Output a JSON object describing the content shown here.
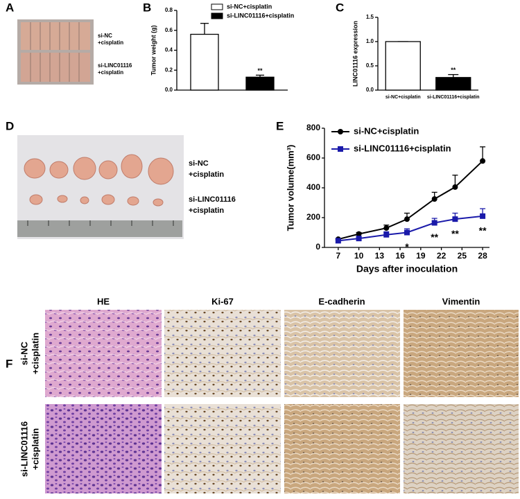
{
  "panel_labels": [
    "A",
    "B",
    "C",
    "D",
    "E",
    "F"
  ],
  "panel_a": {
    "rows": [
      [
        "si-NC",
        "+cisplatin"
      ],
      [
        "si-LINC01116",
        "+cisplatin"
      ]
    ]
  },
  "panel_d": {
    "rows": [
      [
        "si-NC",
        "+cisplatin"
      ],
      [
        "si-LINC01116",
        "+cisplatin"
      ]
    ]
  },
  "panel_f": {
    "columns": [
      "HE",
      "Ki-67",
      "E-cadherin",
      "Vimentin"
    ],
    "rows": [
      [
        "si-NC",
        "+cisplatin"
      ],
      [
        "si-LINC01116",
        "+cisplatin"
      ]
    ]
  },
  "chart_data": [
    {
      "type": "bar",
      "ylabel": "Tumor weight (g)",
      "series": [
        {
          "name": "si-NC+cisplatin",
          "color": "#ffffff",
          "values": [
            0.56
          ],
          "errors": [
            0.11
          ]
        },
        {
          "name": "si-LINC01116+cisplatin",
          "color": "#000000",
          "values": [
            0.13
          ],
          "errors": [
            0.02
          ]
        }
      ],
      "significance": [
        null,
        "**"
      ],
      "ylim": [
        0,
        0.8
      ],
      "yticks": [
        {
          "value": 0,
          "label": "0.0"
        },
        0.2,
        0.4,
        0.6,
        0.8
      ]
    },
    {
      "type": "bar",
      "ylabel": "LINC01116 expression",
      "categories": [
        "si-NC+cisplatin",
        "si-LINC01116+cisplatin"
      ],
      "values": [
        1.0,
        0.26
      ],
      "errors": [
        0,
        0.06
      ],
      "colors": [
        "#ffffff",
        "#000000"
      ],
      "significance": [
        null,
        "**"
      ],
      "ylim": [
        0,
        1.5
      ],
      "yticks": [
        {
          "value": 0,
          "label": "0.0"
        },
        0.5,
        {
          "value": 1,
          "label": "1.0"
        },
        1.5
      ]
    },
    {
      "type": "line",
      "ylabel": "Tumor volume(mm³)",
      "xlabel": "Days after inoculation",
      "x": [
        7,
        10,
        14,
        17,
        21,
        24,
        28
      ],
      "series": [
        {
          "name": "si-NC+cisplatin",
          "color": "#000000",
          "marker": "circle",
          "values": [
            55,
            90,
            130,
            190,
            325,
            405,
            580
          ],
          "errors": [
            5,
            10,
            20,
            40,
            45,
            80,
            95
          ]
        },
        {
          "name": "si-LINC01116+cisplatin",
          "color": "#1a1aaa",
          "marker": "square",
          "values": [
            45,
            60,
            85,
            100,
            165,
            190,
            210
          ],
          "errors": [
            5,
            10,
            20,
            25,
            30,
            40,
            50
          ],
          "significance": [
            null,
            null,
            null,
            "*",
            "**",
            "**",
            "**"
          ]
        }
      ],
      "xlim": [
        5,
        29
      ],
      "xticks": [
        7,
        10,
        13,
        16,
        19,
        22,
        25,
        28
      ],
      "ylim": [
        0,
        800
      ],
      "yticks": [
        0,
        200,
        400,
        600,
        800
      ]
    }
  ]
}
